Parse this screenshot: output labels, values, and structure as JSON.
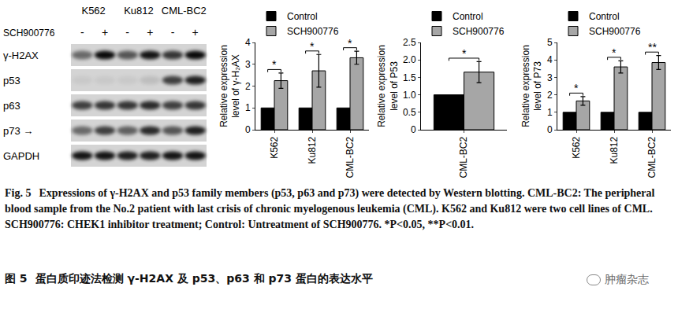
{
  "chart_data": [
    {
      "type": "bar",
      "y_label": "Relative expression level of γ-H₂AX",
      "categories": [
        "K562",
        "Ku812",
        "CML-BC2"
      ],
      "series": [
        {
          "name": "Control",
          "color": "#000000",
          "values": [
            1,
            1,
            1
          ]
        },
        {
          "name": "SCH900776",
          "color": "#a6a6a6",
          "values": [
            2.25,
            2.7,
            3.3
          ],
          "error": [
            0.35,
            0.75,
            0.3
          ]
        }
      ],
      "significance": [
        {
          "category": "K562",
          "text": "*"
        },
        {
          "category": "Ku812",
          "text": "*"
        },
        {
          "category": "CML-BC2",
          "text": "*"
        }
      ],
      "ylim": [
        0,
        4
      ],
      "yticks": [
        0,
        1,
        2,
        3,
        4
      ],
      "grid": false,
      "legend": "top left"
    },
    {
      "type": "bar",
      "y_label": "Relative expression level of P53",
      "categories": [
        "CML-BC2"
      ],
      "series": [
        {
          "name": "Control",
          "color": "#000000",
          "values": [
            1
          ]
        },
        {
          "name": "SCH900776",
          "color": "#a6a6a6",
          "values": [
            1.65
          ],
          "error": [
            0.3
          ]
        }
      ],
      "significance": [
        {
          "category": "CML-BC2",
          "text": "*"
        }
      ],
      "ylim": [
        0,
        2.5
      ],
      "yticks": [
        0,
        0.5,
        {
          "value": 1,
          "label": "1.0"
        },
        1.5,
        {
          "value": 2,
          "label": "2.0"
        },
        2.5
      ],
      "grid": false,
      "legend": "top left"
    },
    {
      "type": "bar",
      "y_label": "Relative expression level of P73",
      "categories": [
        "K562",
        "Ku812",
        "CML-BC2"
      ],
      "series": [
        {
          "name": "Control",
          "color": "#000000",
          "values": [
            1,
            1,
            1
          ]
        },
        {
          "name": "SCH900776",
          "color": "#a6a6a6",
          "values": [
            1.65,
            3.6,
            3.85
          ],
          "error": [
            0.25,
            0.35,
            0.4
          ]
        }
      ],
      "significance": [
        {
          "category": "K562",
          "text": "*"
        },
        {
          "category": "Ku812",
          "text": "*"
        },
        {
          "category": "CML-BC2",
          "text": "**"
        }
      ],
      "ylim": [
        0,
        5
      ],
      "yticks": [
        0,
        1,
        2,
        3,
        4,
        5
      ],
      "grid": false,
      "legend": "top left"
    }
  ],
  "blot": {
    "groups": [
      "K562",
      "Ku812",
      "CML-BC2"
    ],
    "treatment": "SCH900776",
    "signs": [
      "-",
      "+"
    ],
    "rows": [
      {
        "label": "γ-H2AX",
        "intensity": [
          0.5,
          0.95,
          0.6,
          0.9,
          0.75,
          0.95
        ]
      },
      {
        "label": "p53",
        "intensity": [
          0.05,
          0.05,
          0.05,
          0.1,
          0.7,
          0.85
        ]
      },
      {
        "label": "p63",
        "intensity": [
          0.7,
          0.75,
          0.75,
          0.8,
          0.7,
          0.75
        ]
      },
      {
        "label": "p73 →",
        "intensity": [
          0.5,
          0.7,
          0.55,
          0.8,
          0.6,
          0.85
        ]
      },
      {
        "label": "GAPDH",
        "intensity": [
          0.9,
          0.9,
          0.85,
          0.85,
          0.9,
          0.9
        ]
      }
    ]
  },
  "caption": {
    "en": {
      "label": "Fig. 5",
      "text": "Expressions of γ-H2AX and p53 family members (p53, p63 and p73) were detected by Western blotting. CML-BC2: The peripheral blood sample from the No.2 patient with last crisis of chronic myelogenous leukemia (CML). K562 and Ku812 were two cell lines of CML. SCH900776: CHEK1 inhibitor treatment; Control: Untreatment of SCH900776. *P<0.05, **P<0.01."
    },
    "zh": {
      "label": "图 5",
      "text": "蛋白质印迹法检测 γ-H2AX 及 p53、p63 和 p73 蛋白的表达水平"
    }
  },
  "watermark": "肿瘤杂志"
}
